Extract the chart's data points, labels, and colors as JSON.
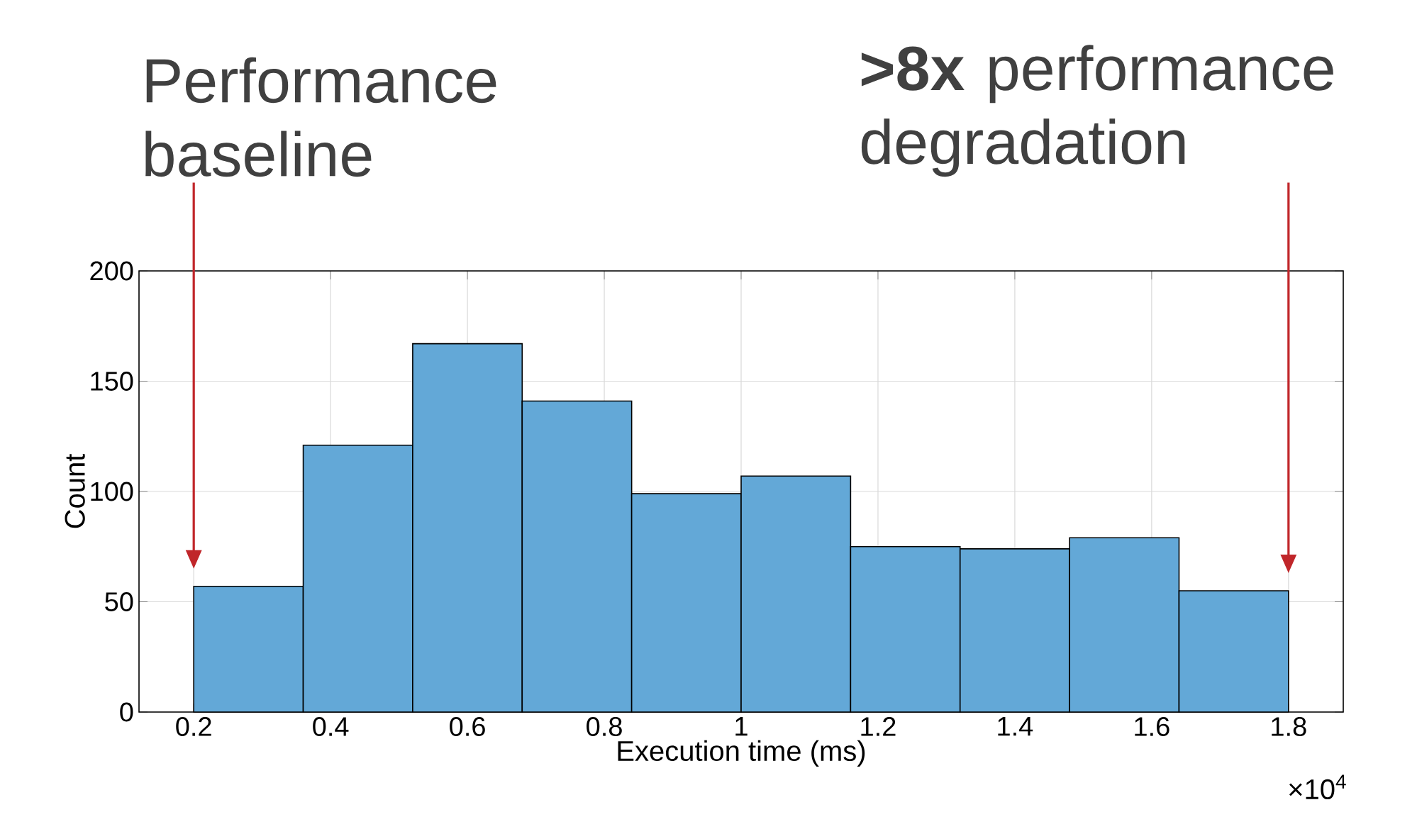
{
  "chart_data": {
    "type": "histogram",
    "xlabel": "Execution time (ms)",
    "ylabel": "Count",
    "bins": [
      0.2,
      0.36,
      0.52,
      0.68,
      0.84,
      1.0,
      1.16,
      1.32,
      1.48,
      1.64,
      1.8
    ],
    "values": [
      57,
      121,
      167,
      141,
      99,
      107,
      75,
      74,
      79,
      55
    ],
    "color": "#63a8d7",
    "xlim": [
      0.12,
      1.88
    ],
    "ylim": [
      0,
      200
    ],
    "xticks": [
      0.2,
      0.4,
      0.6,
      0.8,
      1,
      1.2,
      1.4,
      1.6,
      1.8
    ],
    "yticks": [
      0,
      50,
      100,
      150,
      200
    ],
    "grid": true,
    "annotations": [
      "Performance baseline",
      "**>8x** performance degradation",
      "×10$^{4}$"
    ]
  }
}
